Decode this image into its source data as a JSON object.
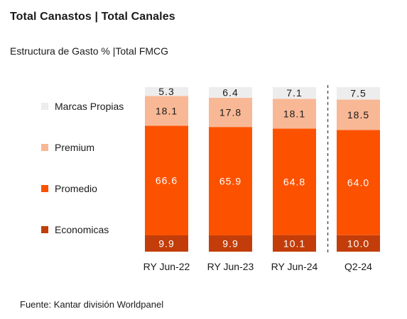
{
  "header": {
    "title": "Total Canastos | Total Canales",
    "subtitle": "Estructura de Gasto % |Total FMCG"
  },
  "footer": {
    "source": "Fuente: Kantar división Worldpanel"
  },
  "chart_data": {
    "type": "bar",
    "stacked": true,
    "categories": [
      "RY Jun-22",
      "RY Jun-23",
      "RY Jun-24",
      "Q2-24"
    ],
    "series": [
      {
        "name": "Economicas",
        "color": "#c23d0a",
        "values": [
          9.9,
          9.9,
          10.1,
          10.0
        ],
        "label_color": "#ffffff"
      },
      {
        "name": "Promedio",
        "color": "#fc5200",
        "values": [
          66.6,
          65.9,
          64.8,
          64.0
        ],
        "label_color": "#ffffff"
      },
      {
        "name": "Premium",
        "color": "#f9b895",
        "values": [
          18.1,
          17.8,
          18.1,
          18.5
        ],
        "label_color": "#1a1a1a"
      },
      {
        "name": "Marcas Propias",
        "color": "#ededed",
        "values": [
          5.3,
          6.4,
          7.1,
          7.5
        ],
        "label_color": "#1a1a1a"
      }
    ],
    "legend_order": [
      "Marcas Propias",
      "Premium",
      "Promedio",
      "Economicas"
    ],
    "legend_position": "left",
    "separator_before_category": "Q2-24",
    "ylim": [
      0,
      100
    ],
    "grid": false
  }
}
